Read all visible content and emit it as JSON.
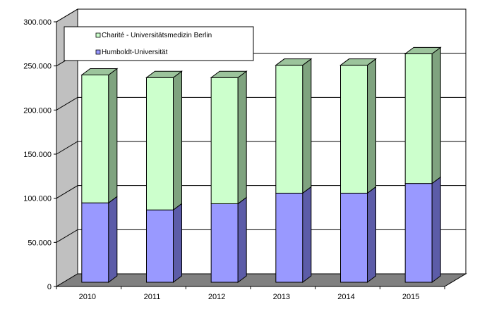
{
  "chart_data": {
    "type": "bar",
    "stacked": true,
    "three_d": true,
    "categories": [
      "2010",
      "2011",
      "2012",
      "2013",
      "2014",
      "2015"
    ],
    "series": [
      {
        "name": "Humboldt-Universität",
        "values": [
          90000,
          82000,
          89000,
          101000,
          101000,
          112000
        ],
        "color": "#9999ff"
      },
      {
        "name": "Charité - Universitätsmedizin Berlin",
        "values": [
          145000,
          150000,
          143000,
          145000,
          145000,
          147000
        ],
        "color": "#ccffcc"
      }
    ],
    "ylim": [
      0,
      300000
    ],
    "y_ticks": [
      "0",
      "50.000",
      "100.000",
      "150.000",
      "200.000",
      "250.000",
      "300.000"
    ],
    "grid": true,
    "legend_position": "top-left"
  },
  "colors": {
    "wall": "#ffffff",
    "floor": "#808080",
    "side_wall": "#c0c0c0",
    "grid": "#000000",
    "humboldt_side": "#5c5ca8",
    "humboldt_top": "#8080cc",
    "charite_side": "#7fa37f",
    "charite_top": "#9cc49c"
  }
}
